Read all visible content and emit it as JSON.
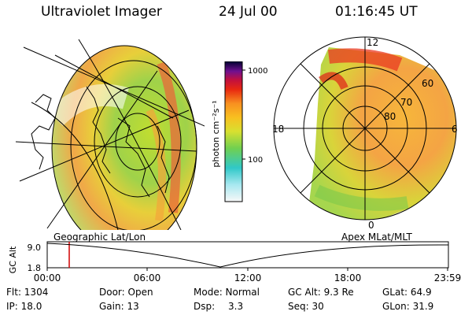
{
  "header": {
    "title": "Ultraviolet Imager",
    "date": "24 Jul 00",
    "time": "01:16:45 UT"
  },
  "colorbar": {
    "label": "photon cm⁻²s⁻¹",
    "ticks": [
      "1000",
      "100"
    ],
    "scale": "log"
  },
  "polar_plot": {
    "lat_labels": [
      "60",
      "70",
      "80"
    ],
    "mlt_labels": [
      "12",
      "18",
      "6",
      "0"
    ]
  },
  "timeline": {
    "left_title": "Geographic Lat/Lon",
    "right_title": "Apex MLat/MLT",
    "ylabel": "GC Alt",
    "yticks": [
      "9.0",
      "1.8"
    ],
    "xticks": [
      "00:00",
      "06:00",
      "12:00",
      "18:00",
      "23:59"
    ],
    "marker_color": "#d00000"
  },
  "info": {
    "flt": "Flt: 1304",
    "ip": "IP: 18.0",
    "door": "Door: Open",
    "gain": "Gain: 13",
    "mode": "Mode: Normal",
    "dsp_label": "Dsp:",
    "dsp_value": "3.3",
    "gcalt": "GC Alt: 9.3 Re",
    "seq": "Seq: 30",
    "glat": "GLat: 64.9",
    "glon": "GLon: 31.9"
  }
}
